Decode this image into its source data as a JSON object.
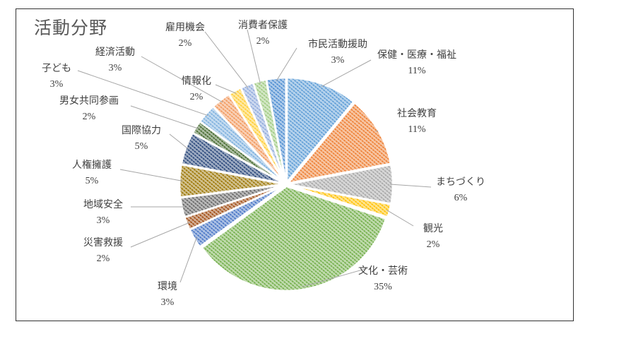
{
  "chart_data": {
    "type": "pie",
    "title": "活動分野",
    "start_angle": "12 o'clock, clockwise",
    "categories": [
      "保健・医療・福祉",
      "社会教育",
      "まちづくり",
      "観光",
      "文化・芸術",
      "環境",
      "災害救援",
      "地域安全",
      "人権擁護",
      "国際協力",
      "男女共同参画",
      "子ども",
      "経済活動",
      "情報化",
      "雇用機会",
      "消費者保護",
      "市民活動援助"
    ],
    "values": [
      11,
      11,
      6,
      2,
      35,
      3,
      2,
      3,
      5,
      5,
      2,
      3,
      3,
      2,
      2,
      2,
      3
    ],
    "labels": [
      "11%",
      "11%",
      "6%",
      "2%",
      "35%",
      "3%",
      "2%",
      "3%",
      "5%",
      "5%",
      "2%",
      "3%",
      "3%",
      "2%",
      "2%",
      "2%",
      "3%"
    ],
    "colors": [
      "#5B9BD5",
      "#ED7D31",
      "#A5A5A5",
      "#FFC000",
      "#70AD47",
      "#4472C4",
      "#9E480E",
      "#636363",
      "#997300",
      "#264478",
      "#43682B",
      "#7CAFDD",
      "#F1975A",
      "#FFCD33",
      "#8FAADC",
      "#9DC97F",
      "#4A8BD0"
    ],
    "fill_pattern": "diagonal dashes",
    "legend": "none (data labels with leader lines)"
  }
}
